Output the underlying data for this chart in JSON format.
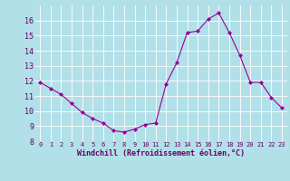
{
  "x": [
    0,
    1,
    2,
    3,
    4,
    5,
    6,
    7,
    8,
    9,
    10,
    11,
    12,
    13,
    14,
    15,
    16,
    17,
    18,
    19,
    20,
    21,
    22,
    23
  ],
  "y": [
    11.9,
    11.5,
    11.1,
    10.5,
    9.9,
    9.5,
    9.2,
    8.7,
    8.6,
    8.8,
    9.1,
    9.2,
    11.8,
    13.2,
    15.2,
    15.3,
    16.1,
    16.5,
    15.2,
    13.7,
    11.9,
    11.9,
    10.9,
    10.2
  ],
  "line_color": "#990099",
  "marker": "D",
  "marker_size": 2,
  "bg_color": "#b2e0e8",
  "grid_color": "#ffffff",
  "xlabel": "Windchill (Refroidissement éolien,°C)",
  "xlabel_color": "#660066",
  "tick_color": "#660066",
  "ylim": [
    8,
    17
  ],
  "xlim": [
    -0.5,
    23.5
  ],
  "yticks": [
    8,
    9,
    10,
    11,
    12,
    13,
    14,
    15,
    16
  ],
  "xticks": [
    0,
    1,
    2,
    3,
    4,
    5,
    6,
    7,
    8,
    9,
    10,
    11,
    12,
    13,
    14,
    15,
    16,
    17,
    18,
    19,
    20,
    21,
    22,
    23
  ],
  "xtick_fontsize": 5.0,
  "ytick_fontsize": 6.0,
  "xlabel_fontsize": 6.0
}
